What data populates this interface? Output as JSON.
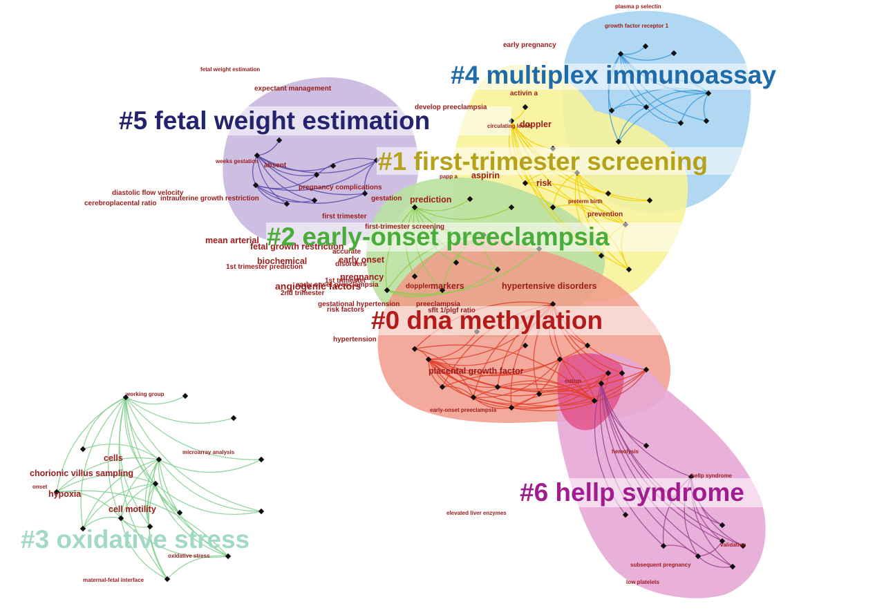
{
  "clusters": [
    {
      "id": "c0",
      "label": "#0 dna methylation",
      "color": "#b51a1a",
      "hull": "#f19a8a",
      "edge": "#e0402a"
    },
    {
      "id": "c1",
      "label": "#1 first-trimester screening",
      "color": "#b5a11a",
      "hull": "#f7f39a",
      "edge": "#f0d000"
    },
    {
      "id": "c2",
      "label": "#2 early-onset preeclampsia",
      "color": "#4aad3a",
      "hull": "#b9e0a0",
      "edge": "#88cf4a"
    },
    {
      "id": "c3",
      "label": "#3 oxidative stress",
      "color": "#a2d9c5",
      "hull": "none",
      "edge": "#7fcf8c"
    },
    {
      "id": "c4",
      "label": "#4 multiplex immunoassay",
      "color": "#1f6aa8",
      "hull": "#a9d4f2",
      "edge": "#3a9ad8"
    },
    {
      "id": "c5",
      "label": "#5 fetal weight estimation",
      "color": "#23236e",
      "hull": "#c4b3dd",
      "edge": "#5548a8"
    },
    {
      "id": "c6",
      "label": "#6 hellp syndrome",
      "color": "#a11c8e",
      "hull": "#e7a8d6",
      "edge": "#9b3f8e"
    }
  ],
  "keywords": [
    {
      "text": "plasma p selectin",
      "size": "s"
    },
    {
      "text": "growth factor receptor 1",
      "size": "s"
    },
    {
      "text": "early pregnancy",
      "size": "m"
    },
    {
      "text": "fetal weight estimation",
      "size": "s"
    },
    {
      "text": "expectant management",
      "size": "m"
    },
    {
      "text": "develop preeclampsia",
      "size": "m"
    },
    {
      "text": "activin a",
      "size": "m"
    },
    {
      "text": "circulating levels",
      "size": "s"
    },
    {
      "text": "doppler",
      "size": "l"
    },
    {
      "text": "weeks gestation",
      "size": "s"
    },
    {
      "text": "absent",
      "size": "m"
    },
    {
      "text": "aspirin",
      "size": "l"
    },
    {
      "text": "papp a",
      "size": "s"
    },
    {
      "text": "risk",
      "size": "l"
    },
    {
      "text": "pregnancy complications",
      "size": "m"
    },
    {
      "text": "diastolic flow velocity",
      "size": "m"
    },
    {
      "text": "intrauterine growth restriction",
      "size": "m"
    },
    {
      "text": "cerebroplacental ratio",
      "size": "m"
    },
    {
      "text": "gestation",
      "size": "m"
    },
    {
      "text": "prediction",
      "size": "l"
    },
    {
      "text": "preterm birth",
      "size": "s"
    },
    {
      "text": "prevention",
      "size": "m"
    },
    {
      "text": "first trimester",
      "size": "m"
    },
    {
      "text": "first-trimester screening",
      "size": "m"
    },
    {
      "text": "mean arterial",
      "size": "l"
    },
    {
      "text": "fetal growth restriction",
      "size": "l"
    },
    {
      "text": "accurate",
      "size": "m"
    },
    {
      "text": "early onset",
      "size": "l"
    },
    {
      "text": "biochemical",
      "size": "l"
    },
    {
      "text": "1st trimester prediction",
      "size": "m"
    },
    {
      "text": "disorders",
      "size": "m"
    },
    {
      "text": "pregnancy",
      "size": "l"
    },
    {
      "text": "1st trimester",
      "size": "m"
    },
    {
      "text": "angiogenic factors",
      "size": "xl"
    },
    {
      "text": "early onset preeclampsia",
      "size": "m"
    },
    {
      "text": "2nd trimester",
      "size": "m"
    },
    {
      "text": "doppler",
      "size": "m"
    },
    {
      "text": "markers",
      "size": "l"
    },
    {
      "text": "hypertensive disorders",
      "size": "l"
    },
    {
      "text": "preeclampsia",
      "size": "m"
    },
    {
      "text": "gestational hypertension",
      "size": "m"
    },
    {
      "text": "risk factors",
      "size": "m"
    },
    {
      "text": "sflt 1/plgf ratio",
      "size": "m"
    },
    {
      "text": "hypertension",
      "size": "m"
    },
    {
      "text": "placental growth factor",
      "size": "l"
    },
    {
      "text": "outcm",
      "size": "s"
    },
    {
      "text": "early-onset preeclampsia",
      "size": "s"
    },
    {
      "text": "hemolysis",
      "size": "s"
    },
    {
      "text": "hellp syndrome",
      "size": "s"
    },
    {
      "text": "elevated liver enzymes",
      "size": "s"
    },
    {
      "text": "validation",
      "size": "s"
    },
    {
      "text": "subsequent pregnancy",
      "size": "s"
    },
    {
      "text": "low platelets",
      "size": "s"
    },
    {
      "text": "working group",
      "size": "s"
    },
    {
      "text": "microarray analysis",
      "size": "s"
    },
    {
      "text": "cells",
      "size": "l"
    },
    {
      "text": "chorionic villus sampling",
      "size": "l"
    },
    {
      "text": "onset",
      "size": "s"
    },
    {
      "text": "hypoxia",
      "size": "l"
    },
    {
      "text": "cell motility",
      "size": "l"
    },
    {
      "text": "oxidative stress",
      "size": "s"
    },
    {
      "text": "maternal-fetal interface",
      "size": "s"
    }
  ]
}
